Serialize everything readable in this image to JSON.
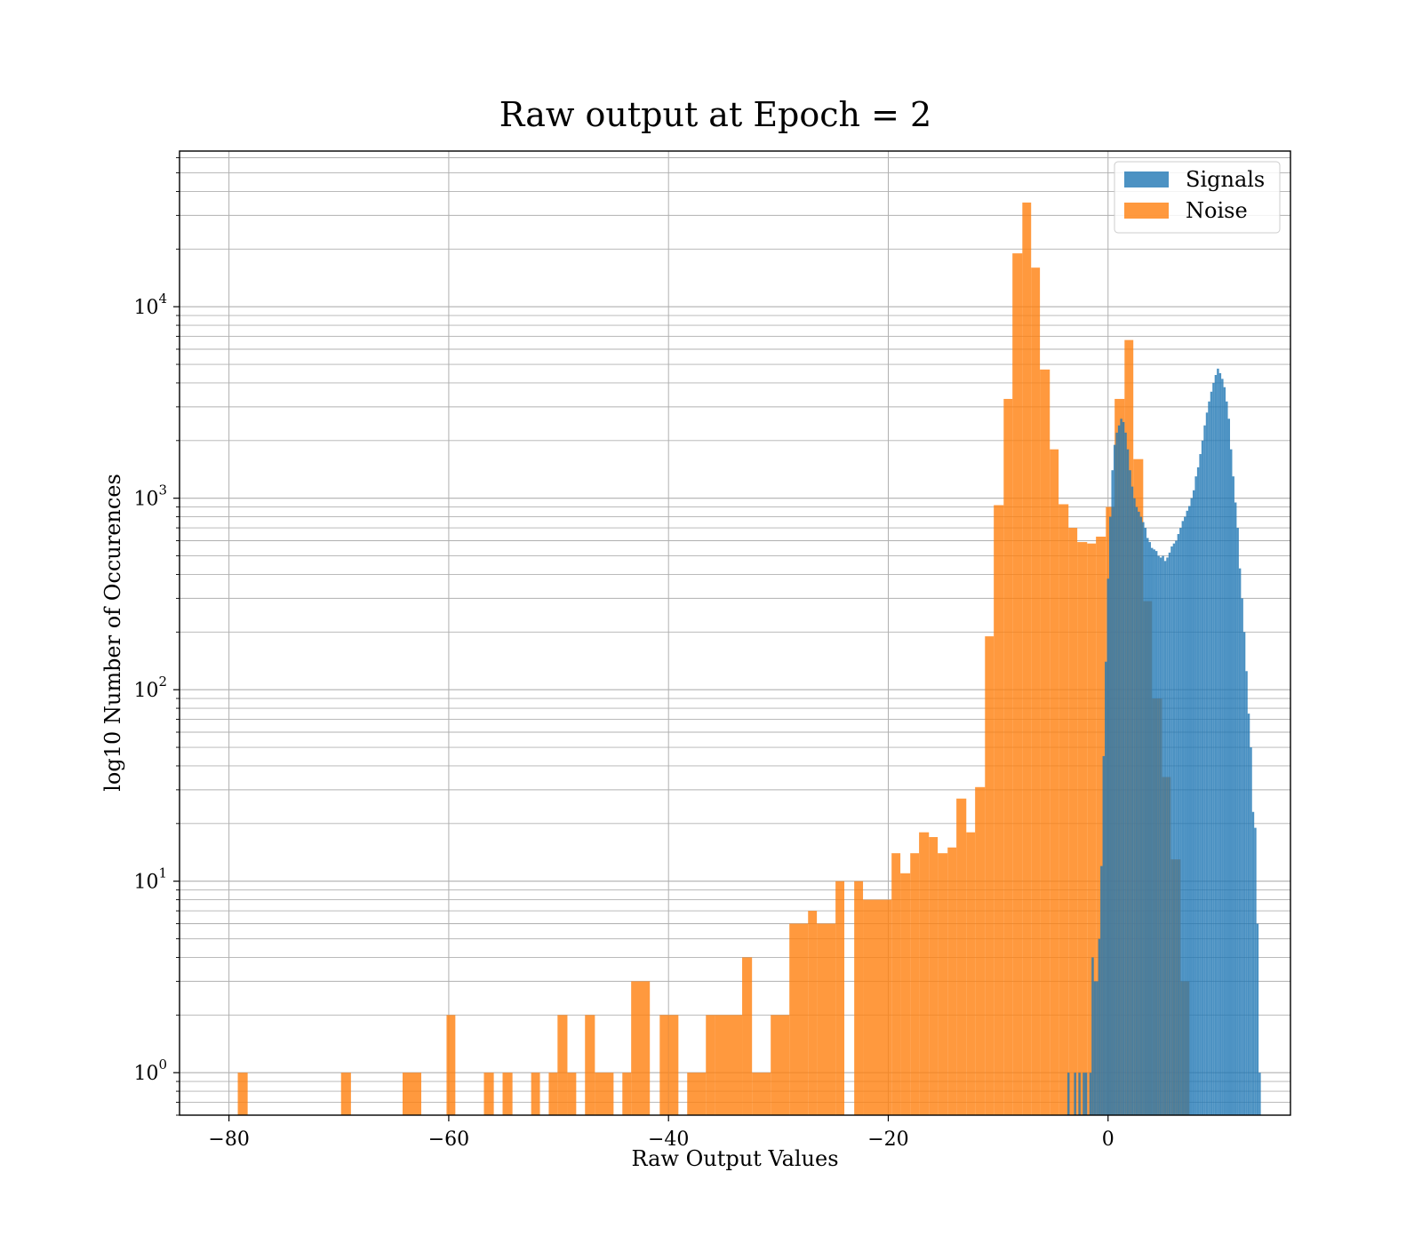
{
  "chart_data": {
    "type": "bar",
    "title": "Raw output at Epoch = 2",
    "xlabel": "Raw Output Values",
    "ylabel": "log10 Number of Occurences",
    "yscale": "log",
    "xlim": [
      -84.5,
      16.6
    ],
    "ylim": [
      0.6,
      65000
    ],
    "grid": true,
    "legend": "top-right",
    "x_ticks": [
      {
        "value": -80,
        "label": "−80"
      },
      {
        "value": -60,
        "label": "−60"
      },
      {
        "value": -40,
        "label": "−40"
      },
      {
        "value": -20,
        "label": "−20"
      },
      {
        "value": 0,
        "label": "0"
      }
    ],
    "y_ticks": [
      {
        "value": 1,
        "base": "10",
        "exp": "0"
      },
      {
        "value": 10,
        "base": "10",
        "exp": "1"
      },
      {
        "value": 100,
        "base": "10",
        "exp": "2"
      },
      {
        "value": 1000,
        "base": "10",
        "exp": "3"
      },
      {
        "value": 10000,
        "base": "10",
        "exp": "4"
      }
    ],
    "series": [
      {
        "name": "Signals",
        "color": "#1f77b4",
        "opacity": 0.8,
        "bin_start": -3.7,
        "bin_width": 0.2,
        "values": [
          1,
          0,
          0,
          1,
          0,
          1,
          0,
          1,
          1,
          0,
          1,
          4,
          3,
          3,
          5,
          12,
          45,
          140,
          380,
          800,
          1400,
          1900,
          2200,
          2400,
          2600,
          2500,
          2200,
          1800,
          1400,
          1150,
          1000,
          900,
          850,
          800,
          750,
          700,
          620,
          590,
          550,
          540,
          530,
          500,
          490,
          500,
          470,
          490,
          520,
          560,
          580,
          600,
          650,
          700,
          760,
          800,
          860,
          910,
          1000,
          1100,
          1300,
          1450,
          1700,
          2000,
          2400,
          2800,
          3200,
          3600,
          4000,
          4400,
          4750,
          4500,
          4200,
          3800,
          3200,
          2600,
          1800,
          1300,
          950,
          700,
          430,
          300,
          200,
          125,
          75,
          50,
          23,
          19,
          6,
          1
        ]
      },
      {
        "name": "Noise",
        "color": "#ff7f0e",
        "opacity": 0.8,
        "bins": [
          [
            -79.2,
            -78.3,
            1
          ],
          [
            -69.8,
            -68.9,
            1
          ],
          [
            -64.2,
            -62.5,
            1
          ],
          [
            -60.2,
            -59.4,
            2
          ],
          [
            -56.8,
            -55.9,
            1
          ],
          [
            -55.1,
            -54.2,
            1
          ],
          [
            -52.5,
            -51.7,
            1
          ],
          [
            -50.9,
            -50.1,
            1
          ],
          [
            -50.1,
            -49.2,
            2
          ],
          [
            -49.2,
            -48.4,
            1
          ],
          [
            -47.6,
            -46.7,
            2
          ],
          [
            -46.7,
            -45.0,
            1
          ],
          [
            -44.2,
            -43.4,
            1
          ],
          [
            -43.4,
            -41.7,
            3
          ],
          [
            -40.8,
            -40.0,
            2
          ],
          [
            -40.0,
            -39.1,
            2
          ],
          [
            -38.3,
            -36.6,
            1
          ],
          [
            -36.6,
            -35.8,
            2
          ],
          [
            -35.8,
            -33.3,
            2
          ],
          [
            -33.3,
            -32.4,
            4
          ],
          [
            -32.4,
            -30.7,
            1
          ],
          [
            -30.7,
            -29.0,
            2
          ],
          [
            -29.0,
            -27.3,
            6
          ],
          [
            -27.3,
            -26.5,
            7
          ],
          [
            -26.5,
            -24.8,
            6
          ],
          [
            -24.8,
            -24.0,
            10
          ],
          [
            -23.1,
            -22.3,
            10
          ],
          [
            -22.3,
            -19.7,
            8
          ],
          [
            -19.7,
            -18.9,
            14
          ],
          [
            -18.9,
            -18.0,
            11
          ],
          [
            -18.0,
            -17.2,
            14
          ],
          [
            -17.2,
            -16.3,
            18
          ],
          [
            -16.3,
            -15.5,
            17
          ],
          [
            -15.5,
            -14.6,
            14
          ],
          [
            -14.6,
            -13.8,
            15
          ],
          [
            -13.8,
            -12.9,
            27
          ],
          [
            -12.9,
            -12.1,
            18
          ],
          [
            -12.1,
            -11.2,
            31
          ],
          [
            -11.2,
            -10.4,
            190
          ],
          [
            -10.4,
            -9.5,
            920
          ],
          [
            -9.5,
            -8.7,
            3300
          ],
          [
            -8.7,
            -7.8,
            19000
          ],
          [
            -7.8,
            -7.0,
            35000
          ],
          [
            -7.0,
            -6.2,
            16000
          ],
          [
            -6.2,
            -5.3,
            4700
          ],
          [
            -5.3,
            -4.5,
            1800
          ],
          [
            -4.5,
            -3.6,
            930
          ],
          [
            -3.6,
            -2.8,
            700
          ],
          [
            -2.8,
            -1.9,
            590
          ],
          [
            -1.9,
            -1.1,
            580
          ],
          [
            -1.1,
            -0.2,
            630
          ],
          [
            -0.2,
            0.6,
            900
          ],
          [
            0.6,
            1.5,
            3300
          ],
          [
            1.5,
            2.3,
            6700
          ],
          [
            2.3,
            3.2,
            1600
          ],
          [
            3.2,
            4.0,
            290
          ],
          [
            4.0,
            4.9,
            90
          ],
          [
            4.9,
            5.7,
            35
          ],
          [
            5.7,
            6.6,
            13
          ],
          [
            6.6,
            7.4,
            3
          ]
        ]
      }
    ]
  }
}
